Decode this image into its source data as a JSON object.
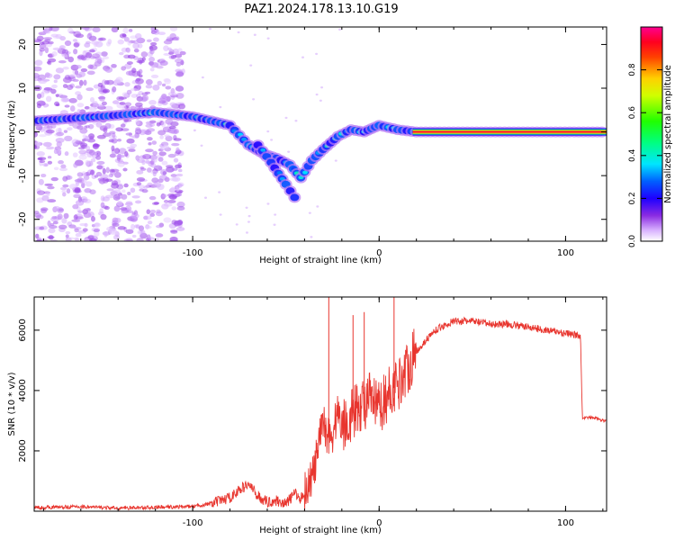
{
  "figure": {
    "title": "PAZ1.2024.178.13.10.G19"
  },
  "chart_data": [
    {
      "type": "heatmap",
      "title": "PAZ1.2024.178.13.10.G19",
      "xlabel": "Height of straight line (km)",
      "ylabel": "Frequency (Hz)",
      "xlim": [
        -185,
        122
      ],
      "ylim": [
        -25,
        24
      ],
      "xticks": [
        -100,
        0,
        100
      ],
      "yticks": [
        -20,
        -10,
        0,
        10,
        20
      ],
      "grid": false,
      "colorbar": {
        "label": "Normalized spectral amplitude",
        "range": [
          0,
          1
        ],
        "ticks": [
          0.0,
          0.2,
          0.4,
          0.6,
          0.8
        ],
        "colormap": [
          "#ffffff",
          "#9b30ff",
          "#3000ff",
          "#0080ff",
          "#00e5ff",
          "#00ff60",
          "#c8ff00",
          "#ffd000",
          "#ff5000",
          "#ff0000",
          "#ff0080"
        ]
      },
      "features": [
        {
          "name": "main-ridge",
          "points": [
            [
              -185,
              2.5
            ],
            [
              -150,
              3.5
            ],
            [
              -120,
              4.5
            ],
            [
              -100,
              3.5
            ],
            [
              -80,
              1.5
            ],
            [
              -70,
              -3
            ],
            [
              -62,
              -5
            ],
            [
              -55,
              -6
            ],
            [
              -48,
              -7.5
            ],
            [
              -42,
              -10.5
            ],
            [
              -36,
              -6.5
            ],
            [
              -30,
              -4
            ],
            [
              -22,
              -1
            ],
            [
              -15,
              0.5
            ],
            [
              -8,
              0
            ],
            [
              0,
              1.5
            ],
            [
              10,
              0.5
            ],
            [
              20,
              0
            ],
            [
              122,
              0
            ]
          ]
        },
        {
          "name": "lower-branch",
          "points": [
            [
              -65,
              -3
            ],
            [
              -58,
              -7
            ],
            [
              -50,
              -12
            ],
            [
              -43,
              -16.5
            ]
          ]
        },
        {
          "name": "carrier-line",
          "points": [
            [
              18,
              0
            ],
            [
              122,
              0
            ]
          ],
          "amplitude": 1.0
        }
      ]
    },
    {
      "type": "line",
      "xlabel": "Height of straight line (km)",
      "ylabel": "SNR (10 * v/v)",
      "xlim": [
        -185,
        122
      ],
      "ylim": [
        0,
        7100
      ],
      "xticks": [
        -100,
        0,
        100
      ],
      "yticks": [
        2000,
        4000,
        6000
      ],
      "grid": false,
      "series": [
        {
          "color": "#e8352e",
          "x": [
            -185,
            -160,
            -140,
            -120,
            -100,
            -90,
            -80,
            -75,
            -70,
            -65,
            -60,
            -55,
            -50,
            -45,
            -42,
            -38,
            -35,
            -32,
            -30,
            -28,
            -25,
            -22,
            -20,
            -15,
            -10,
            -5,
            0,
            5,
            10,
            20,
            30,
            40,
            50,
            60,
            70,
            80,
            90,
            100,
            108,
            109,
            112,
            115,
            120,
            122
          ],
          "y": [
            120,
            150,
            100,
            130,
            160,
            250,
            450,
            700,
            900,
            500,
            300,
            350,
            250,
            600,
            400,
            900,
            1300,
            2300,
            3000,
            2600,
            2500,
            3400,
            2800,
            3200,
            3500,
            3700,
            3400,
            3900,
            4200,
            5300,
            6000,
            6300,
            6300,
            6200,
            6200,
            6100,
            6000,
            5900,
            5800,
            3100,
            3100,
            3100,
            3000,
            3000
          ],
          "spikes": [
            {
              "x": -27,
              "y": 7100
            },
            {
              "x": -8,
              "y": 6600
            },
            {
              "x": 8,
              "y": 7100
            },
            {
              "x": -14,
              "y": 6500
            }
          ]
        }
      ]
    }
  ]
}
